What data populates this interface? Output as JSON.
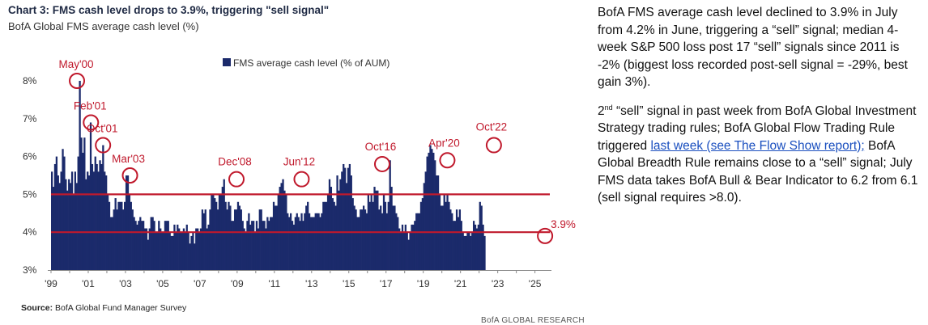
{
  "header": {
    "title": "Chart 3: FMS cash level drops to 3.9%, triggering \"sell signal\"",
    "subtitle": "BofA Global FMS average cash level (%)"
  },
  "footer": {
    "source_label": "Source:",
    "source_text": "BofA Global Fund Manager Survey",
    "credit": "BofA GLOBAL RESEARCH"
  },
  "commentary": {
    "p1": "BofA FMS average cash level declined to 3.9% in July from 4.2% in June, triggering a “sell” signal; median 4-week S&P 500 loss post 17 “sell” signals since 2011 is -2% (biggest loss recorded post-sell signal = -29%, best gain 3%).",
    "p2_num": "2",
    "p2_sup": "nd",
    "p2_a": " “sell” signal in past week from BofA Global Investment Strategy trading rules; BofA Global Flow Trading Rule triggered ",
    "p2_link": "last week (see The Flow Show report);",
    "p2_b": " BofA Global Breadth Rule remains close to a “sell” signal; July FMS data takes BofA Bull & Bear Indicator to 6.2 from 6.1 (sell signal requires >8.0)."
  },
  "colors": {
    "bars": "#1b2a6b",
    "threshold_lines": "#c0192c",
    "annotations": "#c0192c",
    "title": "#1f2a44"
  },
  "chart_data": {
    "type": "bar",
    "legend": "FMS average cash level (% of AUM)",
    "legend_position": "top-center",
    "x_ticks": [
      "'99",
      "'01",
      "'03",
      "'05",
      "'07",
      "'09",
      "'11",
      "'13",
      "'15",
      "'17",
      "'19",
      "'21",
      "'23",
      "'25"
    ],
    "y_ticks": [
      "3%",
      "4%",
      "5%",
      "6%",
      "7%",
      "8%"
    ],
    "xlim": [
      1999.0,
      2025.8
    ],
    "ylim": [
      3,
      8.3
    ],
    "thresholds": [
      5.0,
      4.0
    ],
    "grid": false,
    "annotations": [
      {
        "label": "May'00",
        "x": 2000.35,
        "y": 8.0
      },
      {
        "label": "Feb'01",
        "x": 2001.1,
        "y": 6.9
      },
      {
        "label": "Oct'01",
        "x": 2001.75,
        "y": 6.3
      },
      {
        "label": "Mar'03",
        "x": 2003.2,
        "y": 5.5
      },
      {
        "label": "Dec'08",
        "x": 2008.92,
        "y": 5.4
      },
      {
        "label": "Jun'12",
        "x": 2012.42,
        "y": 5.4
      },
      {
        "label": "Oct'16",
        "x": 2016.75,
        "y": 5.8
      },
      {
        "label": "Apr'20",
        "x": 2020.25,
        "y": 5.9
      },
      {
        "label": "Oct'22",
        "x": 2022.75,
        "y": 6.3
      },
      {
        "label": "3.9%",
        "x": 2025.5,
        "y": 3.9
      }
    ],
    "series": [
      {
        "name": "FMS average cash level (% of AUM)",
        "start": 1999.0,
        "step": 0.08333,
        "values": [
          5.6,
          5.2,
          5.8,
          6.0,
          5.5,
          5.3,
          5.6,
          6.2,
          6.0,
          5.4,
          5.1,
          5.4,
          5.3,
          5.6,
          5.0,
          5.6,
          5.3,
          6.0,
          8.0,
          6.5,
          6.1,
          6.5,
          5.4,
          5.6,
          5.5,
          6.9,
          5.8,
          5.6,
          6.0,
          5.8,
          5.6,
          5.9,
          5.8,
          6.3,
          5.6,
          5.5,
          5.0,
          4.8,
          4.4,
          4.4,
          4.6,
          4.9,
          4.6,
          4.8,
          4.8,
          4.8,
          4.6,
          4.8,
          5.5,
          5.5,
          5.0,
          4.8,
          4.6,
          4.4,
          4.3,
          4.2,
          4.3,
          4.4,
          4.3,
          4.3,
          4.1,
          4.1,
          3.8,
          4.1,
          4.4,
          4.4,
          4.3,
          4.0,
          4.0,
          4.3,
          4.1,
          4.0,
          4.0,
          4.3,
          4.3,
          4.3,
          4.0,
          3.9,
          3.9,
          4.2,
          4.0,
          4.2,
          4.1,
          4.0,
          4.0,
          4.1,
          4.0,
          4.2,
          4.0,
          3.7,
          3.9,
          4.0,
          3.7,
          4.1,
          4.1,
          4.0,
          4.1,
          4.6,
          4.5,
          4.6,
          4.1,
          4.2,
          4.6,
          5.0,
          5.0,
          4.9,
          4.8,
          4.6,
          5.0,
          5.0,
          5.2,
          5.4,
          4.8,
          4.6,
          4.8,
          4.7,
          4.3,
          4.3,
          4.6,
          4.6,
          4.8,
          4.7,
          4.6,
          4.3,
          4.1,
          4.0,
          4.3,
          4.5,
          4.2,
          4.3,
          4.3,
          4.0,
          4.3,
          4.1,
          4.6,
          4.6,
          4.3,
          4.3,
          4.1,
          4.4,
          4.3,
          4.4,
          4.4,
          4.8,
          4.7,
          4.7,
          5.0,
          5.2,
          5.3,
          5.4,
          5.1,
          5.0,
          4.5,
          4.4,
          4.5,
          4.3,
          4.2,
          4.4,
          4.5,
          4.4,
          4.3,
          4.5,
          4.3,
          4.5,
          4.7,
          4.8,
          4.5,
          4.4,
          4.4,
          4.4,
          4.5,
          4.5,
          4.5,
          4.4,
          4.5,
          4.8,
          4.8,
          4.8,
          5.0,
          5.4,
          5.2,
          4.9,
          4.8,
          4.7,
          5.5,
          5.1,
          5.4,
          5.6,
          5.8,
          5.7,
          5.3,
          5.7,
          5.8,
          5.5,
          4.9,
          4.7,
          4.6,
          4.4,
          4.4,
          4.6,
          4.6,
          4.7,
          4.6,
          4.5,
          5.0,
          4.8,
          5.0,
          4.8,
          5.2,
          5.1,
          5.1,
          4.6,
          4.7,
          4.5,
          5.0,
          4.8,
          4.5,
          4.8,
          5.9,
          5.2,
          4.7,
          4.7,
          4.5,
          4.4,
          4.1,
          4.0,
          4.2,
          4.0,
          4.2,
          4.0,
          3.8,
          4.0,
          4.2,
          4.2,
          4.3,
          4.5,
          4.5,
          4.5,
          4.8,
          4.9,
          5.3,
          5.6,
          6.0,
          6.1,
          6.3,
          6.2,
          6.1,
          5.9,
          5.5,
          5.5,
          5.0,
          4.7,
          4.7,
          5.0,
          4.8,
          5.0,
          4.8,
          4.6,
          4.5,
          4.3,
          4.3,
          4.6,
          4.4,
          4.6,
          4.3,
          4.0,
          3.9,
          3.9,
          4.0,
          4.0,
          3.9,
          4.0,
          4.3,
          4.2,
          4.1,
          4.2,
          4.8,
          4.7,
          4.2,
          3.9
        ]
      }
    ]
  }
}
